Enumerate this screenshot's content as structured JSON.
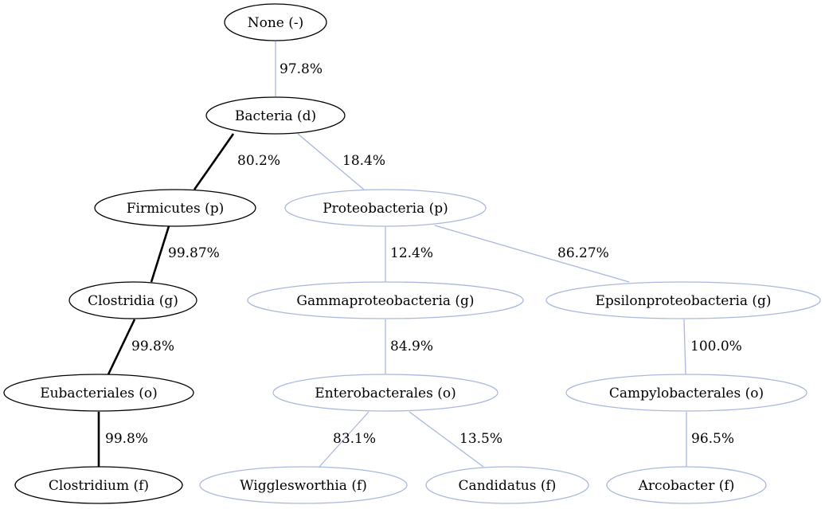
{
  "diagram": {
    "type": "taxonomy-tree",
    "colors": {
      "primary": "#000000",
      "secondary": "#a9b8dc"
    },
    "nodes": [
      {
        "id": "none",
        "label": "None (-)",
        "highlight": true
      },
      {
        "id": "bacteria",
        "label": "Bacteria (d)",
        "highlight": true
      },
      {
        "id": "firmicutes",
        "label": "Firmicutes (p)",
        "highlight": true
      },
      {
        "id": "proteobacteria",
        "label": "Proteobacteria (p)",
        "highlight": false
      },
      {
        "id": "clostridia",
        "label": "Clostridia (g)",
        "highlight": true
      },
      {
        "id": "gammaproteobacteria",
        "label": "Gammaproteobacteria (g)",
        "highlight": false
      },
      {
        "id": "epsilonproteobacteria",
        "label": "Epsilonproteobacteria (g)",
        "highlight": false
      },
      {
        "id": "eubacteriales",
        "label": "Eubacteriales (o)",
        "highlight": true
      },
      {
        "id": "enterobacterales",
        "label": "Enterobacterales (o)",
        "highlight": false
      },
      {
        "id": "campylobacterales",
        "label": "Campylobacterales (o)",
        "highlight": false
      },
      {
        "id": "clostridium",
        "label": "Clostridium (f)",
        "highlight": true
      },
      {
        "id": "wigglesworthia",
        "label": "Wigglesworthia (f)",
        "highlight": false
      },
      {
        "id": "candidatus",
        "label": "Candidatus (f)",
        "highlight": false
      },
      {
        "id": "arcobacter",
        "label": "Arcobacter (f)",
        "highlight": false
      }
    ],
    "edges": [
      {
        "from": "none",
        "to": "bacteria",
        "label": "97.8%",
        "style": "thin-secondary"
      },
      {
        "from": "bacteria",
        "to": "firmicutes",
        "label": "80.2%",
        "style": "bold"
      },
      {
        "from": "bacteria",
        "to": "proteobacteria",
        "label": "18.4%",
        "style": "thin-secondary"
      },
      {
        "from": "firmicutes",
        "to": "clostridia",
        "label": "99.87%",
        "style": "bold"
      },
      {
        "from": "proteobacteria",
        "to": "gammaproteobacteria",
        "label": "12.4%",
        "style": "thin-secondary"
      },
      {
        "from": "proteobacteria",
        "to": "epsilonproteobacteria",
        "label": "86.27%",
        "style": "thin-secondary"
      },
      {
        "from": "clostridia",
        "to": "eubacteriales",
        "label": "99.8%",
        "style": "bold"
      },
      {
        "from": "gammaproteobacteria",
        "to": "enterobacterales",
        "label": "84.9%",
        "style": "thin-secondary"
      },
      {
        "from": "epsilonproteobacteria",
        "to": "campylobacterales",
        "label": "100.0%",
        "style": "thin-secondary"
      },
      {
        "from": "eubacteriales",
        "to": "clostridium",
        "label": "99.8%",
        "style": "bold"
      },
      {
        "from": "enterobacterales",
        "to": "wigglesworthia",
        "label": "83.1%",
        "style": "thin-secondary"
      },
      {
        "from": "enterobacterales",
        "to": "candidatus",
        "label": "13.5%",
        "style": "thin-secondary"
      },
      {
        "from": "campylobacterales",
        "to": "arcobacter",
        "label": "96.5%",
        "style": "thin-secondary"
      }
    ]
  }
}
